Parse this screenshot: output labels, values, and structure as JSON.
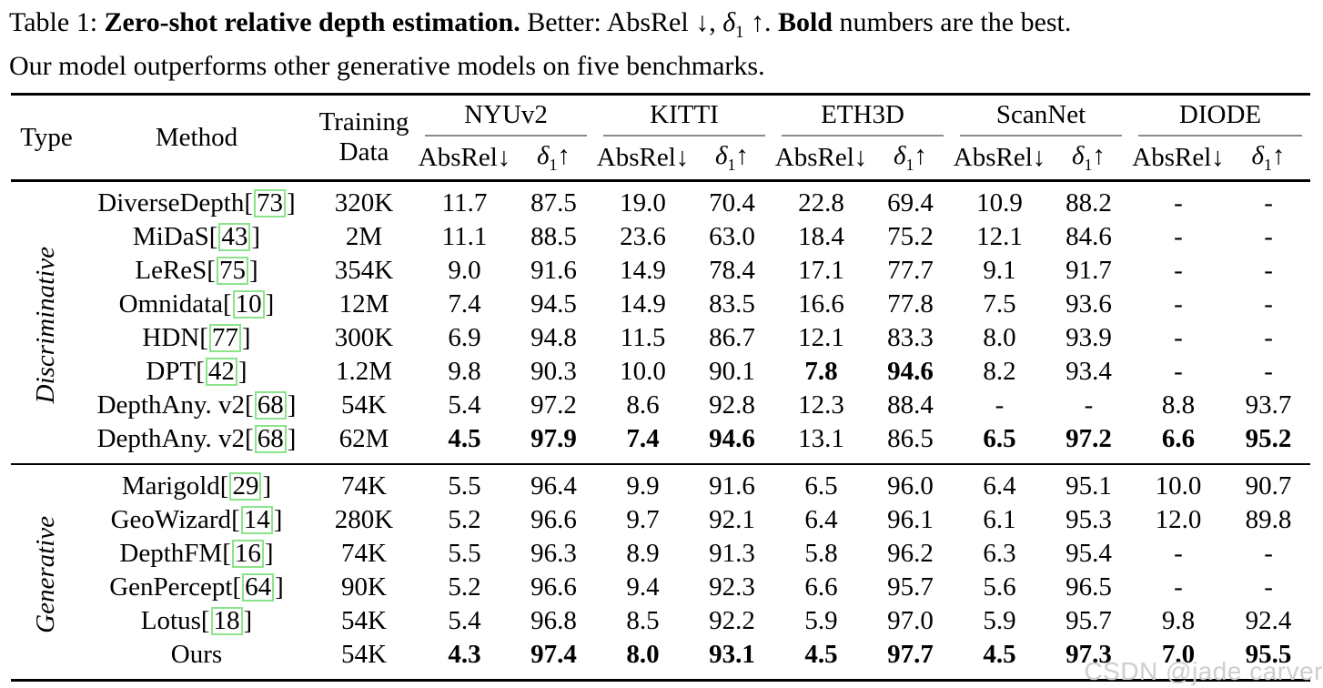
{
  "caption": {
    "line1": {
      "label": "Table 1: ",
      "title_bold": "Zero-shot relative depth estimation.",
      "better_prefix": " Better: AbsRel ↓, ",
      "delta_symbol": "δ",
      "delta_sub": "1",
      "arrow_segment": " ↑. ",
      "bold_word": "Bold",
      "best_suffix": " numbers are the best."
    },
    "line2": "Our model outperforms other generative models on five benchmarks."
  },
  "header": {
    "type": "Type",
    "method": "Method",
    "training_line1": "Training",
    "training_line2": "Data",
    "groups": [
      "NYUv2",
      "KITTI",
      "ETH3D",
      "ScanNet",
      "DIODE"
    ],
    "metric_absrel": "AbsRel↓",
    "metric_delta": "δ",
    "metric_delta_sub": "1",
    "metric_delta_arrow": "↑"
  },
  "meta": {
    "bracket_open": "[",
    "bracket_close": "]",
    "citation_box_color": "#8be48b",
    "rule_gray": "#8a8a8a"
  },
  "sections": [
    {
      "label": "Discriminative",
      "rows": [
        {
          "method": "DiverseDepth",
          "cite": "73",
          "training": "320K",
          "values": [
            "11.7",
            "87.5",
            "19.0",
            "70.4",
            "22.8",
            "69.4",
            "10.9",
            "88.2",
            "-",
            "-"
          ],
          "bold": []
        },
        {
          "method": "MiDaS",
          "cite": "43",
          "training": "2M",
          "values": [
            "11.1",
            "88.5",
            "23.6",
            "63.0",
            "18.4",
            "75.2",
            "12.1",
            "84.6",
            "-",
            "-"
          ],
          "bold": []
        },
        {
          "method": "LeReS",
          "cite": "75",
          "training": "354K",
          "values": [
            "9.0",
            "91.6",
            "14.9",
            "78.4",
            "17.1",
            "77.7",
            "9.1",
            "91.7",
            "-",
            "-"
          ],
          "bold": []
        },
        {
          "method": "Omnidata",
          "cite": "10",
          "training": "12M",
          "values": [
            "7.4",
            "94.5",
            "14.9",
            "83.5",
            "16.6",
            "77.8",
            "7.5",
            "93.6",
            "-",
            "-"
          ],
          "bold": []
        },
        {
          "method": "HDN",
          "cite": "77",
          "training": "300K",
          "values": [
            "6.9",
            "94.8",
            "11.5",
            "86.7",
            "12.1",
            "83.3",
            "8.0",
            "93.9",
            "-",
            "-"
          ],
          "bold": []
        },
        {
          "method": "DPT",
          "cite": "42",
          "training": "1.2M",
          "values": [
            "9.8",
            "90.3",
            "10.0",
            "90.1",
            "7.8",
            "94.6",
            "8.2",
            "93.4",
            "-",
            "-"
          ],
          "bold": [
            4,
            5
          ]
        },
        {
          "method": "DepthAny. v2",
          "cite": "68",
          "training": "54K",
          "values": [
            "5.4",
            "97.2",
            "8.6",
            "92.8",
            "12.3",
            "88.4",
            "-",
            "-",
            "8.8",
            "93.7"
          ],
          "bold": []
        },
        {
          "method": "DepthAny. v2",
          "cite": "68",
          "training": "62M",
          "values": [
            "4.5",
            "97.9",
            "7.4",
            "94.6",
            "13.1",
            "86.5",
            "6.5",
            "97.2",
            "6.6",
            "95.2"
          ],
          "bold": [
            0,
            1,
            2,
            3,
            6,
            7,
            8,
            9
          ]
        }
      ]
    },
    {
      "label": "Generative",
      "rows": [
        {
          "method": "Marigold",
          "cite": "29",
          "training": "74K",
          "values": [
            "5.5",
            "96.4",
            "9.9",
            "91.6",
            "6.5",
            "96.0",
            "6.4",
            "95.1",
            "10.0",
            "90.7"
          ],
          "bold": []
        },
        {
          "method": "GeoWizard",
          "cite": "14",
          "training": "280K",
          "values": [
            "5.2",
            "96.6",
            "9.7",
            "92.1",
            "6.4",
            "96.1",
            "6.1",
            "95.3",
            "12.0",
            "89.8"
          ],
          "bold": []
        },
        {
          "method": "DepthFM",
          "cite": "16",
          "training": "74K",
          "values": [
            "5.5",
            "96.3",
            "8.9",
            "91.3",
            "5.8",
            "96.2",
            "6.3",
            "95.4",
            "-",
            "-"
          ],
          "bold": []
        },
        {
          "method": "GenPercept",
          "cite": "64",
          "training": "90K",
          "values": [
            "5.2",
            "96.6",
            "9.4",
            "92.3",
            "6.6",
            "95.7",
            "5.6",
            "96.5",
            "-",
            "-"
          ],
          "bold": []
        },
        {
          "method": "Lotus",
          "cite": "18",
          "training": "54K",
          "values": [
            "5.4",
            "96.8",
            "8.5",
            "92.2",
            "5.9",
            "97.0",
            "5.9",
            "95.7",
            "9.8",
            "92.4"
          ],
          "bold": []
        },
        {
          "method": "Ours",
          "cite": null,
          "training": "54K",
          "values": [
            "4.3",
            "97.4",
            "8.0",
            "93.1",
            "4.5",
            "97.7",
            "4.5",
            "97.3",
            "7.0",
            "95.5"
          ],
          "bold": [
            0,
            1,
            2,
            3,
            4,
            5,
            6,
            7,
            8,
            9
          ]
        }
      ]
    }
  ],
  "watermark": "CSDN @jade carver"
}
